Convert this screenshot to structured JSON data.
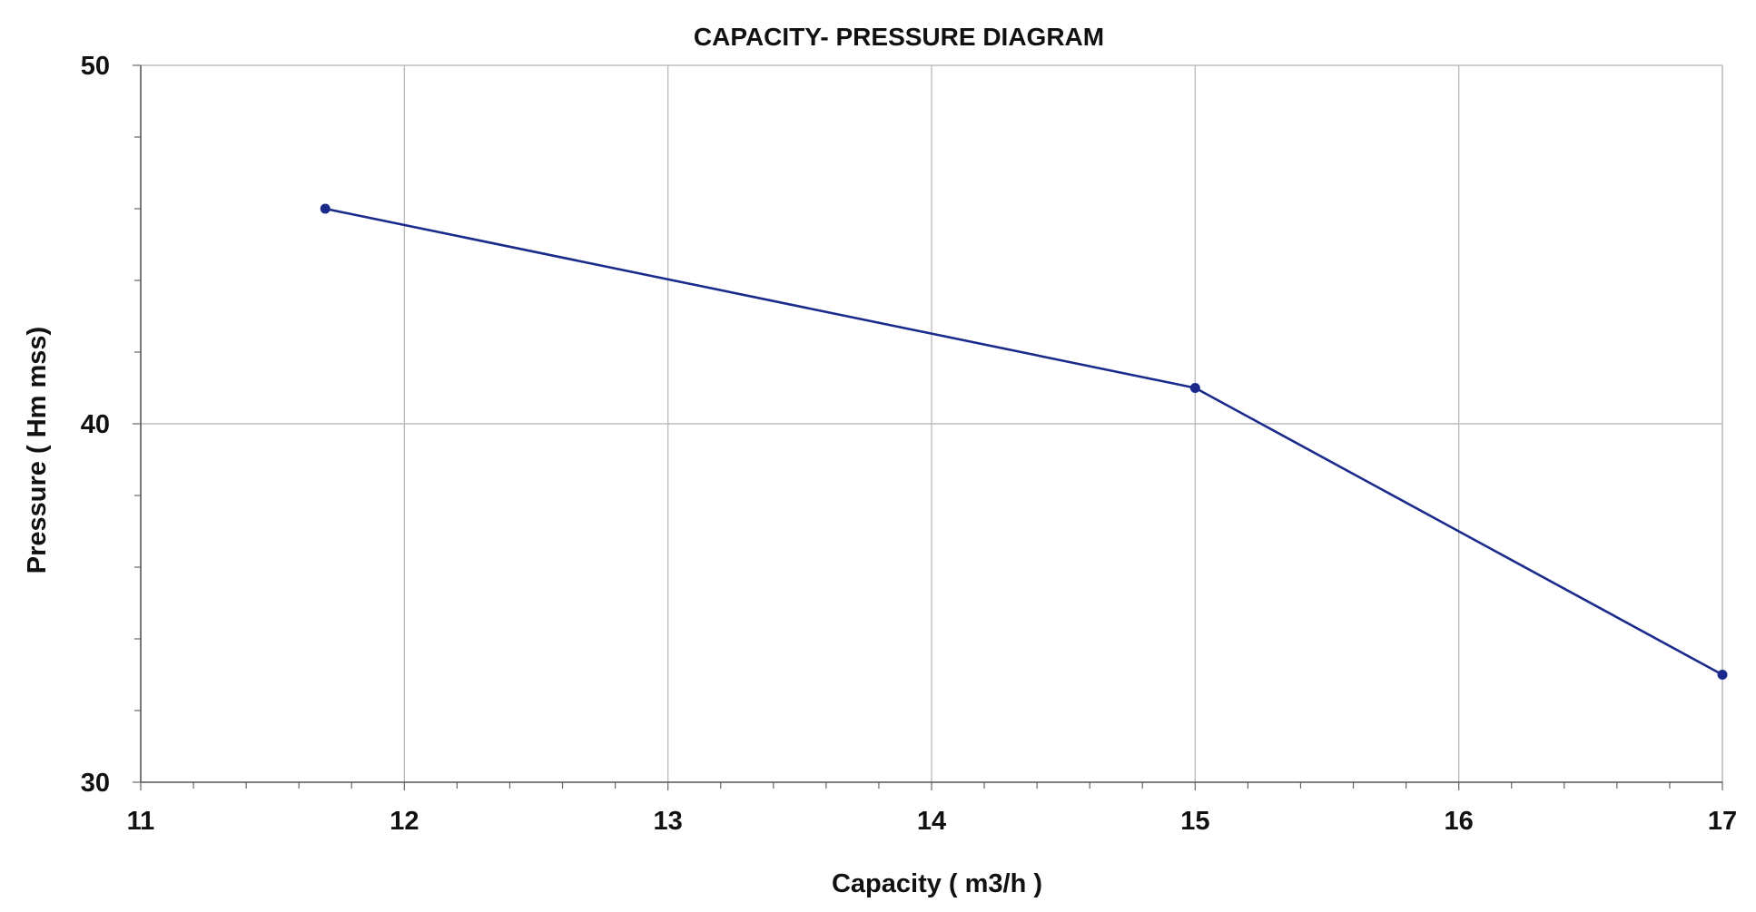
{
  "chart_data": {
    "type": "line",
    "title": "CAPACITY- PRESSURE DIAGRAM",
    "xlabel": "Capacity ( m3/h )",
    "ylabel": "Pressure ( Hm mss)",
    "xlim": [
      11,
      17
    ],
    "ylim": [
      30,
      50
    ],
    "x_ticks": [
      "11",
      "12",
      "13",
      "14",
      "15",
      "16",
      "17"
    ],
    "y_ticks": [
      "30",
      "40",
      "50"
    ],
    "grid": true,
    "series": [
      {
        "x": [
          11.7,
          15,
          17
        ],
        "y": [
          46,
          41,
          33
        ],
        "color": "#1a2b8c",
        "marker": "circle"
      }
    ]
  }
}
